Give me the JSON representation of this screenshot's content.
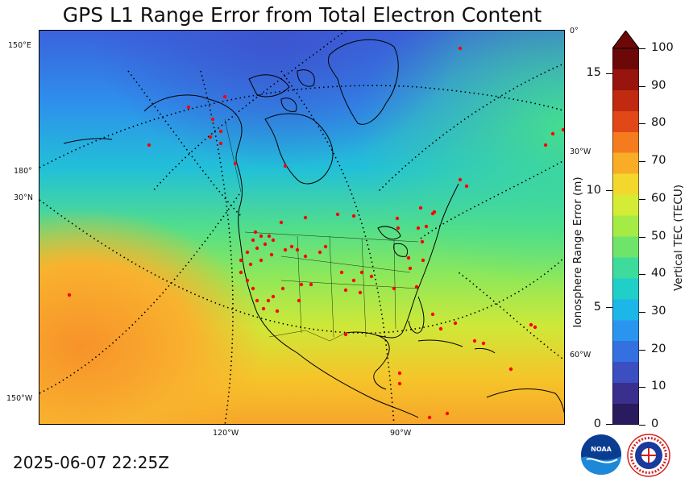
{
  "title": "GPS L1 Range Error from Total Electron Content",
  "timestamp": "2025-06-07 22:25Z",
  "map": {
    "graticule_labels": {
      "lon_top": "0°",
      "lon_30w_upper": "30°W",
      "lon_60w": "60°W",
      "lon_150e": "150°E",
      "lon_180": "180°",
      "lat_30n": "30°N",
      "lon_150w": "150°W",
      "lon_120w": "120°W",
      "lon_90w": "90°W"
    },
    "station_color": "#ff0000",
    "colormap": "jet-like (navy → blue → cyan → green → yellow → orange → red)"
  },
  "colorbar": {
    "left_axis_label": "Ionosphere Range Error (m)",
    "left_ticks": [
      "0",
      "5",
      "10",
      "15"
    ],
    "right_axis_label": "Vertical TEC (TECU)",
    "right_ticks": [
      "0",
      "10",
      "20",
      "30",
      "40",
      "50",
      "60",
      "70",
      "80",
      "90",
      "100"
    ],
    "extend": "max",
    "colors": [
      "#2a1a5e",
      "#3a2f8c",
      "#3b4fc0",
      "#3570e0",
      "#2a95ef",
      "#1cb6e8",
      "#20cfc8",
      "#3ddc9c",
      "#6ee56a",
      "#a4ec45",
      "#d4ec35",
      "#f3d72c",
      "#f9ad27",
      "#f57b1f",
      "#e04818",
      "#bf2a10",
      "#97150c",
      "#6d0808"
    ]
  },
  "logos": {
    "noaa": "NOAA",
    "nws": "NATIONAL WEATHER SERVICE"
  }
}
